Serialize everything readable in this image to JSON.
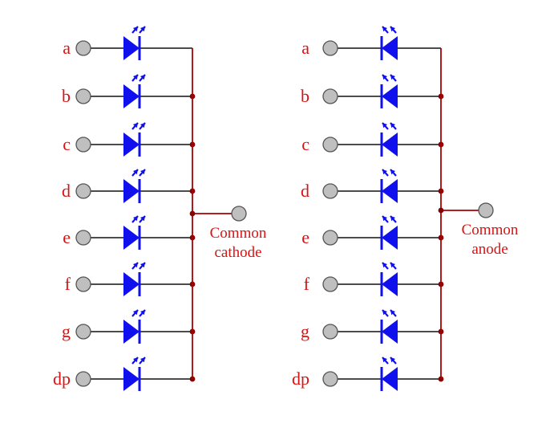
{
  "diagrams": [
    {
      "kind": "common-cathode",
      "caption_line1": "Common",
      "caption_line2": "cathode",
      "segments": [
        "a",
        "b",
        "c",
        "d",
        "e",
        "f",
        "g",
        "dp"
      ]
    },
    {
      "kind": "common-anode",
      "caption_line1": "Common",
      "caption_line2": "anode",
      "segments": [
        "a",
        "b",
        "c",
        "d",
        "e",
        "f",
        "g",
        "dp"
      ]
    }
  ],
  "colors": {
    "label": "#dd1111",
    "diode": "#1010ee",
    "wire": "#111111",
    "bus": "#aa0000",
    "junction": "#880000",
    "terminal_fill": "#bfbfbf",
    "terminal_stroke": "#555555"
  }
}
